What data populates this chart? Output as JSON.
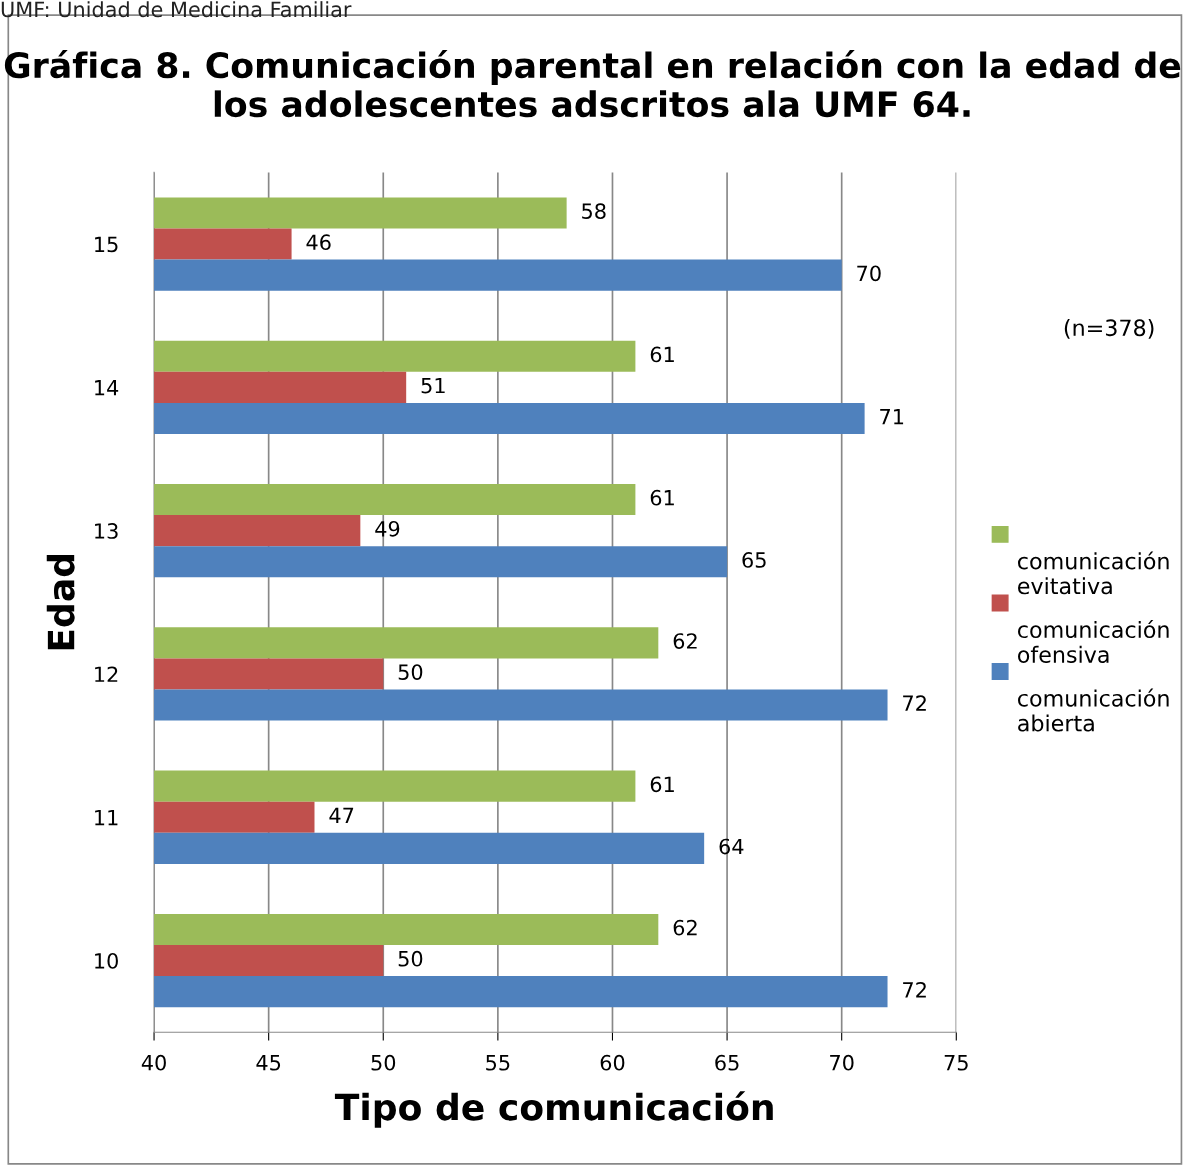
{
  "chart_data": {
    "type": "bar",
    "orientation": "horizontal",
    "title": "Gráfica 8. Comunicación parental en relación con la edad de los adolescentes adscritos ala UMF 64.",
    "xlabel": "Tipo de comunicación",
    "ylabel": "Edad",
    "categories": [
      "15",
      "14",
      "13",
      "12",
      "11",
      "10"
    ],
    "series": [
      {
        "name": "comunicación evitativa",
        "color": "#9bbb59",
        "values": [
          58,
          61,
          61,
          62,
          61,
          62
        ]
      },
      {
        "name": "comunicación ofensiva",
        "color": "#c0504d",
        "values": [
          46,
          51,
          49,
          50,
          47,
          50
        ]
      },
      {
        "name": "comunicación abierta",
        "color": "#4f81bd",
        "values": [
          70,
          71,
          65,
          72,
          64,
          72
        ]
      }
    ],
    "xlim": [
      40,
      75
    ],
    "xticks": [
      40,
      45,
      50,
      55,
      60,
      65,
      70,
      75
    ],
    "grid": "x",
    "legend": "right",
    "data_labels": true,
    "annotations": [
      "(n=378)",
      "UMF: Unidad de Medicina Familiar"
    ]
  }
}
